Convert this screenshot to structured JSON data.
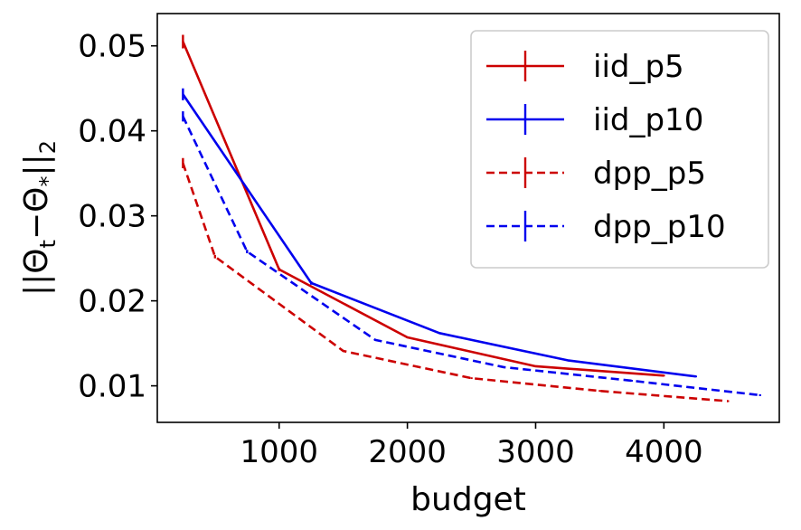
{
  "chart_data": {
    "type": "line",
    "xlabel": "budget",
    "ylabel": "||Θ_t − Θ_*||_2",
    "xlim": [
      50,
      4900
    ],
    "ylim": [
      0.0057,
      0.0538
    ],
    "xticks": [
      {
        "value": 1000,
        "label": "1000"
      },
      {
        "value": 2000,
        "label": "2000"
      },
      {
        "value": 3000,
        "label": "3000"
      },
      {
        "value": 4000,
        "label": "4000"
      }
    ],
    "yticks": [
      {
        "value": 0.01,
        "label": "0.01"
      },
      {
        "value": 0.02,
        "label": "0.02"
      },
      {
        "value": 0.03,
        "label": "0.03"
      },
      {
        "value": 0.04,
        "label": "0.04"
      },
      {
        "value": 0.05,
        "label": "0.05"
      }
    ],
    "grid": false,
    "legend_position": "top-right",
    "series": [
      {
        "name": "iid_p5",
        "color": "#cc0000",
        "style": "solid",
        "x": [
          250,
          1000,
          2000,
          3000,
          4000
        ],
        "y": [
          0.0505,
          0.0237,
          0.0157,
          0.0123,
          0.0112
        ],
        "err": [
          0.0008,
          0.0002,
          0.0001,
          0.0001,
          0.0001
        ]
      },
      {
        "name": "iid_p10",
        "color": "#0000ee",
        "style": "solid",
        "x": [
          250,
          1250,
          2250,
          3250,
          4250
        ],
        "y": [
          0.0443,
          0.0221,
          0.0162,
          0.013,
          0.0111
        ],
        "err": [
          0.0007,
          0.0002,
          0.0001,
          0.0001,
          0.0001
        ]
      },
      {
        "name": "dpp_p5",
        "color": "#cc0000",
        "style": "dashed",
        "x": [
          250,
          500,
          1500,
          2500,
          3500,
          4500
        ],
        "y": [
          0.0362,
          0.0252,
          0.0141,
          0.0109,
          0.0094,
          0.0082
        ],
        "err": [
          0.0006,
          0.0002,
          0.0001,
          0.0001,
          0.0001,
          0.0001
        ]
      },
      {
        "name": "dpp_p10",
        "color": "#0000ee",
        "style": "dashed",
        "x": [
          250,
          750,
          1750,
          2750,
          3750,
          4750
        ],
        "y": [
          0.0417,
          0.0258,
          0.0154,
          0.0122,
          0.0106,
          0.0089
        ],
        "err": [
          0.0006,
          0.0002,
          0.0001,
          0.0001,
          0.0001,
          0.0001
        ]
      }
    ]
  }
}
